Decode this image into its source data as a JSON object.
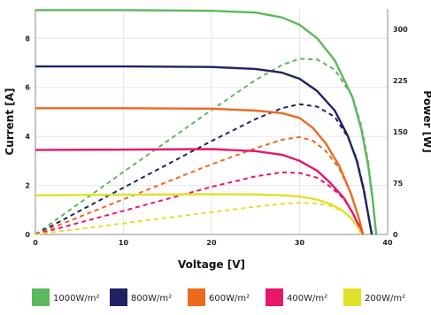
{
  "chart_data": {
    "type": "line",
    "xlabel": "Voltage [V]",
    "ylabel_left": "Current [A]",
    "ylabel_right": "Power [W]",
    "xlim": [
      0,
      40
    ],
    "ylim_left": [
      0,
      9.2
    ],
    "ylim_right": [
      0,
      330
    ],
    "x_ticks": [
      0,
      10,
      20,
      30,
      40
    ],
    "y_left_ticks": [
      0,
      2,
      4,
      6,
      8
    ],
    "y_right_ticks": [
      0,
      75,
      150,
      225,
      300
    ],
    "grid": true,
    "legend": "bottom",
    "series": [
      {
        "name": "1000W/m²",
        "color": "#5cb85c",
        "current": [
          [
            0,
            9.15
          ],
          [
            10,
            9.15
          ],
          [
            20,
            9.12
          ],
          [
            25,
            9.05
          ],
          [
            28,
            8.85
          ],
          [
            30,
            8.55
          ],
          [
            32,
            8.0
          ],
          [
            34,
            7.1
          ],
          [
            36,
            5.6
          ],
          [
            37,
            4.3
          ],
          [
            37.8,
            2.8
          ],
          [
            38.3,
            1.4
          ],
          [
            38.7,
            0
          ]
        ],
        "power": [
          [
            0,
            0
          ],
          [
            10,
            91.5
          ],
          [
            20,
            182
          ],
          [
            25,
            226
          ],
          [
            28,
            248
          ],
          [
            30,
            257
          ],
          [
            32,
            256
          ],
          [
            34,
            241
          ],
          [
            36,
            202
          ],
          [
            37,
            159
          ],
          [
            37.8,
            106
          ],
          [
            38.3,
            54
          ],
          [
            38.7,
            0
          ]
        ]
      },
      {
        "name": "800W/m²",
        "color": "#1f2461",
        "current": [
          [
            0,
            6.85
          ],
          [
            10,
            6.85
          ],
          [
            20,
            6.83
          ],
          [
            25,
            6.75
          ],
          [
            28,
            6.6
          ],
          [
            30,
            6.35
          ],
          [
            32,
            5.85
          ],
          [
            34,
            5.05
          ],
          [
            35.5,
            4.0
          ],
          [
            36.5,
            3.0
          ],
          [
            37.3,
            1.8
          ],
          [
            37.8,
            0.8
          ],
          [
            38.2,
            0
          ]
        ],
        "power": [
          [
            0,
            0
          ],
          [
            10,
            68.5
          ],
          [
            20,
            136.6
          ],
          [
            25,
            168.8
          ],
          [
            28,
            184.8
          ],
          [
            30,
            190.5
          ],
          [
            32,
            187
          ],
          [
            34,
            172
          ],
          [
            35.5,
            142
          ],
          [
            36.5,
            109.5
          ],
          [
            37.3,
            67
          ],
          [
            37.8,
            30
          ],
          [
            38.2,
            0
          ]
        ]
      },
      {
        "name": "600W/m²",
        "color": "#ea6a1e",
        "current": [
          [
            0,
            5.15
          ],
          [
            10,
            5.15
          ],
          [
            20,
            5.13
          ],
          [
            25,
            5.05
          ],
          [
            28,
            4.95
          ],
          [
            30,
            4.75
          ],
          [
            31.5,
            4.35
          ],
          [
            33,
            3.7
          ],
          [
            34.5,
            2.8
          ],
          [
            35.8,
            1.7
          ],
          [
            36.7,
            0.7
          ],
          [
            37.2,
            0
          ]
        ],
        "power": [
          [
            0,
            0
          ],
          [
            10,
            51.5
          ],
          [
            20,
            102.6
          ],
          [
            25,
            126
          ],
          [
            28,
            138.6
          ],
          [
            30,
            142.5
          ],
          [
            31.5,
            137
          ],
          [
            33,
            122
          ],
          [
            34.5,
            96.6
          ],
          [
            35.8,
            61
          ],
          [
            36.7,
            25.7
          ],
          [
            37.2,
            0
          ]
        ]
      },
      {
        "name": "400W/m²",
        "color": "#e6176c",
        "current": [
          [
            0,
            3.45
          ],
          [
            10,
            3.46
          ],
          [
            20,
            3.48
          ],
          [
            25,
            3.4
          ],
          [
            28,
            3.25
          ],
          [
            30,
            3.0
          ],
          [
            32,
            2.6
          ],
          [
            33.5,
            2.1
          ],
          [
            35,
            1.5
          ],
          [
            36,
            0.9
          ],
          [
            36.8,
            0.3
          ],
          [
            37.1,
            0
          ]
        ],
        "power": [
          [
            0,
            0
          ],
          [
            10,
            34.6
          ],
          [
            20,
            69.6
          ],
          [
            25,
            85
          ],
          [
            28,
            91
          ],
          [
            30,
            90
          ],
          [
            32,
            83
          ],
          [
            33.5,
            70
          ],
          [
            35,
            52.5
          ],
          [
            36,
            32.4
          ],
          [
            36.8,
            11
          ],
          [
            37.1,
            0
          ]
        ]
      },
      {
        "name": "200W/m²",
        "color": "#e3df2a",
        "current": [
          [
            0,
            1.6
          ],
          [
            10,
            1.62
          ],
          [
            20,
            1.64
          ],
          [
            25,
            1.63
          ],
          [
            28,
            1.6
          ],
          [
            30,
            1.55
          ],
          [
            32,
            1.42
          ],
          [
            33.5,
            1.25
          ],
          [
            35,
            0.95
          ],
          [
            36,
            0.6
          ],
          [
            36.7,
            0.25
          ],
          [
            37,
            0
          ]
        ],
        "power": [
          [
            0,
            0
          ],
          [
            10,
            16.2
          ],
          [
            20,
            32.8
          ],
          [
            25,
            40.7
          ],
          [
            28,
            44.8
          ],
          [
            30,
            46.5
          ],
          [
            32,
            45.4
          ],
          [
            33.5,
            41.9
          ],
          [
            35,
            33.2
          ],
          [
            36,
            21.6
          ],
          [
            36.7,
            9.2
          ],
          [
            37,
            0
          ]
        ]
      }
    ]
  }
}
